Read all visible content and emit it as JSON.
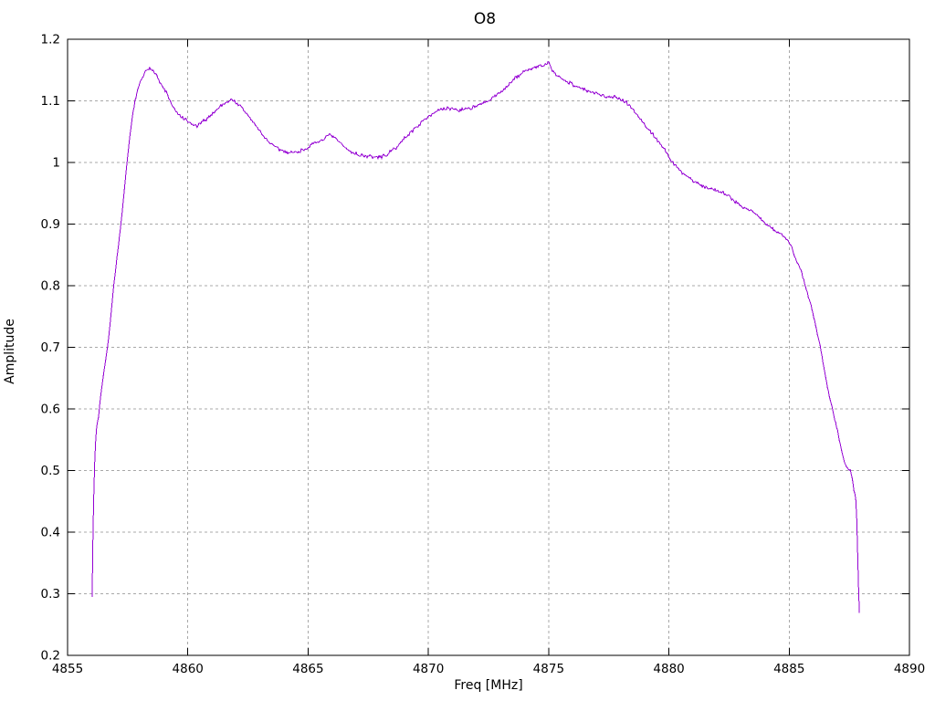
{
  "chart_data": {
    "type": "line",
    "title": "O8",
    "xlabel": "Freq [MHz]",
    "ylabel": "Amplitude",
    "xlim": [
      4855,
      4890
    ],
    "ylim": [
      0.2,
      1.2
    ],
    "x_ticks": [
      4855,
      4860,
      4865,
      4870,
      4875,
      4880,
      4885,
      4890
    ],
    "x_tick_labels": [
      "4855",
      "4860",
      "4865",
      "4870",
      "4875",
      "4880",
      "4885",
      "4890"
    ],
    "y_ticks": [
      0.2,
      0.3,
      0.4,
      0.5,
      0.6,
      0.7,
      0.8,
      0.9,
      1.0,
      1.1,
      1.2
    ],
    "y_tick_labels": [
      "0.2",
      "0.3",
      "0.4",
      "0.5",
      "0.6",
      "0.7",
      "0.8",
      "0.9",
      "1",
      "1.1",
      "1.2"
    ],
    "grid": true,
    "legend": "none",
    "line_color": "#9400d3",
    "grid_color": "#a8a8a8",
    "axis_color": "#000000",
    "background_color": "#ffffff",
    "series": [
      {
        "name": "O8",
        "points": [
          [
            4856.02,
            0.295
          ],
          [
            4856.04,
            0.34
          ],
          [
            4856.06,
            0.41
          ],
          [
            4856.09,
            0.46
          ],
          [
            4856.11,
            0.5
          ],
          [
            4856.16,
            0.545
          ],
          [
            4856.21,
            0.572
          ],
          [
            4856.28,
            0.585
          ],
          [
            4856.33,
            0.605
          ],
          [
            4856.45,
            0.645
          ],
          [
            4856.58,
            0.678
          ],
          [
            4856.68,
            0.705
          ],
          [
            4856.8,
            0.752
          ],
          [
            4856.92,
            0.8
          ],
          [
            4857.05,
            0.845
          ],
          [
            4857.2,
            0.893
          ],
          [
            4857.34,
            0.946
          ],
          [
            4857.47,
            1.0
          ],
          [
            4857.6,
            1.045
          ],
          [
            4857.74,
            1.088
          ],
          [
            4857.88,
            1.112
          ],
          [
            4858.02,
            1.13
          ],
          [
            4858.2,
            1.145
          ],
          [
            4858.4,
            1.152
          ],
          [
            4858.55,
            1.151
          ],
          [
            4858.7,
            1.143
          ],
          [
            4858.85,
            1.128
          ],
          [
            4859.0,
            1.12
          ],
          [
            4859.12,
            1.113
          ],
          [
            4859.3,
            1.096
          ],
          [
            4859.5,
            1.082
          ],
          [
            4859.75,
            1.073
          ],
          [
            4860.0,
            1.066
          ],
          [
            4860.2,
            1.061
          ],
          [
            4860.4,
            1.059
          ],
          [
            4860.62,
            1.066
          ],
          [
            4860.85,
            1.073
          ],
          [
            4861.1,
            1.082
          ],
          [
            4861.4,
            1.093
          ],
          [
            4861.65,
            1.099
          ],
          [
            4861.85,
            1.102
          ],
          [
            4862.05,
            1.096
          ],
          [
            4862.3,
            1.086
          ],
          [
            4862.55,
            1.074
          ],
          [
            4862.8,
            1.061
          ],
          [
            4863.05,
            1.048
          ],
          [
            4863.3,
            1.036
          ],
          [
            4863.55,
            1.027
          ],
          [
            4863.8,
            1.021
          ],
          [
            4864.1,
            1.017
          ],
          [
            4864.4,
            1.016
          ],
          [
            4864.7,
            1.019
          ],
          [
            4864.95,
            1.024
          ],
          [
            4865.2,
            1.029
          ],
          [
            4865.45,
            1.034
          ],
          [
            4865.7,
            1.04
          ],
          [
            4865.92,
            1.044
          ],
          [
            4866.1,
            1.04
          ],
          [
            4866.35,
            1.031
          ],
          [
            4866.6,
            1.022
          ],
          [
            4866.85,
            1.016
          ],
          [
            4867.15,
            1.012
          ],
          [
            4867.5,
            1.01
          ],
          [
            4867.9,
            1.008
          ],
          [
            4868.2,
            1.011
          ],
          [
            4868.5,
            1.019
          ],
          [
            4868.8,
            1.03
          ],
          [
            4869.1,
            1.043
          ],
          [
            4869.4,
            1.054
          ],
          [
            4869.7,
            1.064
          ],
          [
            4870.0,
            1.076
          ],
          [
            4870.3,
            1.082
          ],
          [
            4870.6,
            1.086
          ],
          [
            4870.95,
            1.088
          ],
          [
            4871.25,
            1.085
          ],
          [
            4871.55,
            1.087
          ],
          [
            4871.9,
            1.09
          ],
          [
            4872.2,
            1.094
          ],
          [
            4872.55,
            1.101
          ],
          [
            4872.9,
            1.111
          ],
          [
            4873.25,
            1.123
          ],
          [
            4873.6,
            1.136
          ],
          [
            4873.95,
            1.147
          ],
          [
            4874.3,
            1.153
          ],
          [
            4874.6,
            1.156
          ],
          [
            4874.85,
            1.157
          ],
          [
            4875.0,
            1.164
          ],
          [
            4875.12,
            1.15
          ],
          [
            4875.35,
            1.141
          ],
          [
            4875.6,
            1.135
          ],
          [
            4875.9,
            1.129
          ],
          [
            4876.2,
            1.123
          ],
          [
            4876.55,
            1.117
          ],
          [
            4876.9,
            1.112
          ],
          [
            4877.25,
            1.109
          ],
          [
            4877.6,
            1.107
          ],
          [
            4877.95,
            1.104
          ],
          [
            4878.2,
            1.099
          ],
          [
            4878.45,
            1.089
          ],
          [
            4878.7,
            1.076
          ],
          [
            4879.0,
            1.061
          ],
          [
            4879.3,
            1.047
          ],
          [
            4879.6,
            1.033
          ],
          [
            4879.9,
            1.016
          ],
          [
            4880.1,
            1.002
          ],
          [
            4880.35,
            0.991
          ],
          [
            4880.65,
            0.981
          ],
          [
            4880.95,
            0.972
          ],
          [
            4881.25,
            0.965
          ],
          [
            4881.55,
            0.959
          ],
          [
            4881.9,
            0.956
          ],
          [
            4882.2,
            0.953
          ],
          [
            4882.5,
            0.945
          ],
          [
            4882.8,
            0.935
          ],
          [
            4883.1,
            0.927
          ],
          [
            4883.4,
            0.923
          ],
          [
            4883.7,
            0.913
          ],
          [
            4884.0,
            0.901
          ],
          [
            4884.3,
            0.892
          ],
          [
            4884.6,
            0.886
          ],
          [
            4884.9,
            0.876
          ],
          [
            4885.1,
            0.862
          ],
          [
            4885.3,
            0.84
          ],
          [
            4885.5,
            0.824
          ],
          [
            4885.67,
            0.8
          ],
          [
            4885.9,
            0.77
          ],
          [
            4886.1,
            0.735
          ],
          [
            4886.3,
            0.7
          ],
          [
            4886.5,
            0.655
          ],
          [
            4886.65,
            0.625
          ],
          [
            4886.8,
            0.6
          ],
          [
            4887.0,
            0.566
          ],
          [
            4887.15,
            0.538
          ],
          [
            4887.3,
            0.515
          ],
          [
            4887.46,
            0.5
          ],
          [
            4887.55,
            0.502
          ],
          [
            4887.62,
            0.487
          ],
          [
            4887.7,
            0.467
          ],
          [
            4887.78,
            0.452
          ],
          [
            4887.82,
            0.41
          ],
          [
            4887.85,
            0.36
          ],
          [
            4887.88,
            0.315
          ],
          [
            4887.92,
            0.268
          ]
        ]
      }
    ]
  }
}
